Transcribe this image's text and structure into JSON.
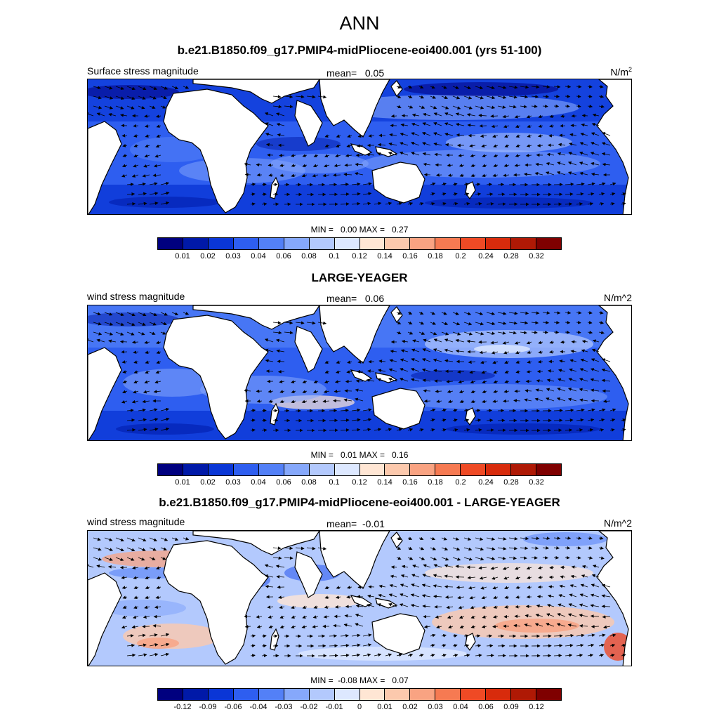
{
  "figure": {
    "title": "ANN"
  },
  "panels": [
    {
      "title": "b.e21.B1850.f09_g17.PMIP4-midPliocene-eoi400.001 (yrs 51-100)",
      "left_label": "Surface stress magnitude",
      "mean_label": "mean=",
      "mean_value": "0.05",
      "units": "N/m",
      "units_sup": "2",
      "min_label": "MIN =",
      "min_value": "0.00",
      "max_label": "MAX =",
      "max_value": "0.27",
      "colorbar_labels": [
        "0.01",
        "0.02",
        "0.03",
        "0.04",
        "0.06",
        "0.08",
        "0.1",
        "0.12",
        "0.14",
        "0.16",
        "0.18",
        "0.2",
        "0.24",
        "0.28",
        "0.32"
      ]
    },
    {
      "title": "LARGE-YEAGER",
      "left_label": "wind stress magnitude",
      "mean_label": "mean=",
      "mean_value": "0.06",
      "units": "N/m^2",
      "min_label": "MIN =",
      "min_value": "0.01",
      "max_label": "MAX =",
      "max_value": "0.16",
      "colorbar_labels": [
        "0.01",
        "0.02",
        "0.03",
        "0.04",
        "0.06",
        "0.08",
        "0.1",
        "0.12",
        "0.14",
        "0.16",
        "0.18",
        "0.2",
        "0.24",
        "0.28",
        "0.32"
      ]
    },
    {
      "title": "b.e21.B1850.f09_g17.PMIP4-midPliocene-eoi400.001 - LARGE-YEAGER",
      "left_label": "wind stress magnitude",
      "mean_label": "mean=",
      "mean_value": "-0.01",
      "units": "N/m^2",
      "min_label": "MIN =",
      "min_value": "-0.08",
      "max_label": "MAX =",
      "max_value": "0.07",
      "colorbar_labels": [
        "-0.12",
        "-0.09",
        "-0.06",
        "-0.04",
        "-0.03",
        "-0.02",
        "-0.01",
        "0",
        "0.01",
        "0.02",
        "0.03",
        "0.04",
        "0.06",
        "0.09",
        "0.12"
      ]
    }
  ],
  "colorbar_colors": [
    "#00007f",
    "#0019a8",
    "#0a36d6",
    "#2e5ef0",
    "#5380f7",
    "#86a8fb",
    "#b3c9fd",
    "#dde8ff",
    "#ffe6d4",
    "#fcc9ad",
    "#f9a382",
    "#f67a52",
    "#ef4a25",
    "#d82b0c",
    "#af1905",
    "#7f0000"
  ],
  "colors": {
    "land": "#ffffff",
    "coast": "#000000",
    "arrow": "#000000"
  }
}
